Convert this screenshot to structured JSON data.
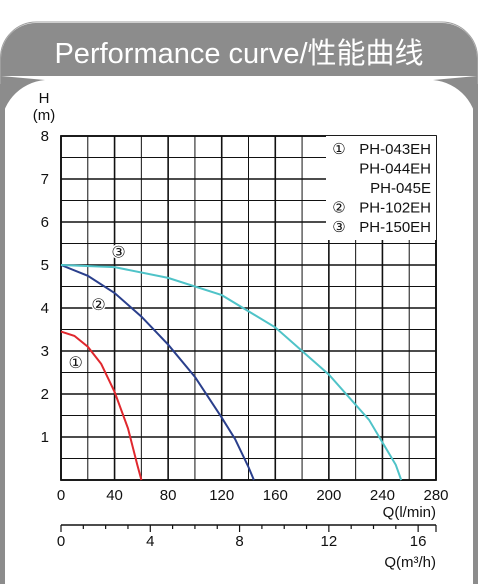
{
  "header": {
    "title": "Performance curve/性能曲线"
  },
  "chart_data": {
    "type": "line",
    "title": "Performance curve/性能曲线",
    "ylabel": "H",
    "yunit": "(m)",
    "xlabel": "Q(l/min)",
    "xlabel2": "Q(m³/h)",
    "xlim": [
      0,
      280
    ],
    "ylim": [
      0,
      8
    ],
    "x_ticks": [
      "0",
      "40",
      "80",
      "120",
      "160",
      "200",
      "240",
      "280"
    ],
    "y_ticks": [
      "1",
      "2",
      "3",
      "4",
      "5",
      "6",
      "7",
      "8"
    ],
    "x2_ticks": [
      {
        "label": "0",
        "value": 0
      },
      {
        "label": "4",
        "value": 4
      },
      {
        "label": "8",
        "value": 8
      },
      {
        "label": "12",
        "value": 12
      },
      {
        "label": "16",
        "value": 16
      }
    ],
    "x2_max": 16.8,
    "grid": true,
    "legend_position": "top-right",
    "legend": [
      {
        "marker": "①",
        "text": "PH-043EH"
      },
      {
        "marker": "",
        "text": "PH-044EH"
      },
      {
        "marker": "",
        "text": "PH-045E"
      },
      {
        "marker": "②",
        "text": "PH-102EH"
      },
      {
        "marker": "③",
        "text": "PH-150EH"
      }
    ],
    "series": [
      {
        "marker": "①",
        "color": "#e0282e",
        "x": [
          0,
          10,
          20,
          30,
          40,
          50,
          57,
          60
        ],
        "y": [
          3.45,
          3.35,
          3.1,
          2.7,
          2.05,
          1.2,
          0.35,
          0
        ]
      },
      {
        "marker": "②",
        "color": "#2a3f8c",
        "x": [
          0,
          20,
          40,
          60,
          80,
          100,
          120,
          130,
          140,
          144
        ],
        "y": [
          5.0,
          4.75,
          4.35,
          3.8,
          3.15,
          2.4,
          1.45,
          0.95,
          0.3,
          0
        ]
      },
      {
        "marker": "③",
        "color": "#4fc3c8",
        "x": [
          0,
          40,
          80,
          120,
          160,
          200,
          230,
          250,
          254
        ],
        "y": [
          5.0,
          4.95,
          4.7,
          4.3,
          3.55,
          2.45,
          1.4,
          0.35,
          0
        ]
      }
    ]
  }
}
